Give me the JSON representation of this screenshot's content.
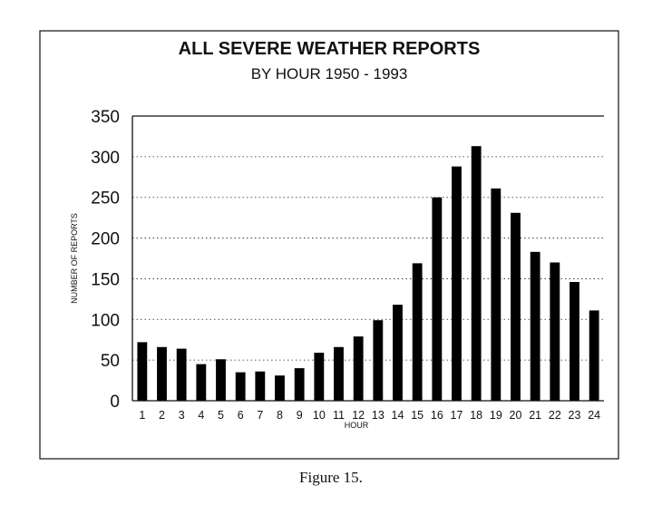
{
  "caption": "Figure 15.",
  "chart_data": {
    "type": "bar",
    "title": "ALL SEVERE WEATHER REPORTS",
    "subtitle": "BY HOUR  1950 - 1993",
    "xlabel": "HOUR",
    "ylabel": "NUMBER OF REPORTS",
    "ylim": [
      0,
      350
    ],
    "yticks": [
      "0",
      "50",
      "100",
      "150",
      "200",
      "250",
      "300",
      "350"
    ],
    "grid": true,
    "categories": [
      "1",
      "2",
      "3",
      "4",
      "5",
      "6",
      "7",
      "8",
      "9",
      "10",
      "11",
      "12",
      "13",
      "14",
      "15",
      "16",
      "17",
      "18",
      "19",
      "20",
      "21",
      "22",
      "23",
      "24"
    ],
    "values": [
      72,
      66,
      64,
      45,
      51,
      35,
      36,
      31,
      40,
      59,
      66,
      79,
      99,
      118,
      169,
      250,
      288,
      313,
      261,
      231,
      183,
      170,
      146,
      111
    ]
  }
}
